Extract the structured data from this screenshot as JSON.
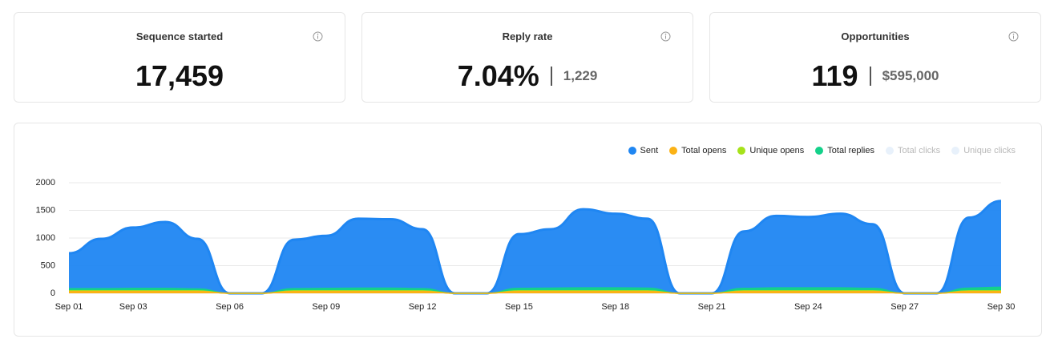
{
  "cards": [
    {
      "title": "Sequence started",
      "value": "17,459"
    },
    {
      "title": "Reply rate",
      "value": "7.04%",
      "secondary": "1,229"
    },
    {
      "title": "Opportunities",
      "value": "119",
      "secondary": "$595,000"
    }
  ],
  "chart_data": {
    "type": "area",
    "categories": [
      "Sep 01",
      null,
      "Sep 03",
      null,
      null,
      "Sep 06",
      null,
      null,
      "Sep 09",
      null,
      null,
      "Sep 12",
      null,
      null,
      "Sep 15",
      null,
      null,
      "Sep 18",
      null,
      null,
      "Sep 21",
      null,
      null,
      "Sep 24",
      null,
      null,
      "Sep 27",
      null,
      null,
      "Sep 30"
    ],
    "series": [
      {
        "name": "Sent",
        "color": "#1f86f2",
        "values": [
          725,
          985,
          1190,
          1290,
          985,
          0,
          0,
          970,
          1040,
          1350,
          1340,
          1160,
          0,
          0,
          1070,
          1160,
          1520,
          1440,
          1350,
          0,
          0,
          1120,
          1400,
          1380,
          1440,
          1250,
          0,
          0,
          1370,
          1670
        ]
      },
      {
        "name": "Total opens",
        "color": "#fbb215",
        "values": [
          35,
          35,
          35,
          35,
          35,
          0,
          0,
          35,
          35,
          35,
          35,
          35,
          0,
          0,
          35,
          35,
          35,
          35,
          35,
          0,
          0,
          35,
          35,
          35,
          35,
          35,
          0,
          0,
          35,
          35
        ]
      },
      {
        "name": "Unique opens",
        "color": "#a6e21a",
        "values": [
          45,
          45,
          45,
          45,
          45,
          0,
          0,
          45,
          45,
          45,
          45,
          45,
          0,
          0,
          45,
          45,
          45,
          45,
          45,
          0,
          0,
          45,
          45,
          45,
          45,
          45,
          0,
          0,
          45,
          45
        ]
      },
      {
        "name": "Total replies",
        "color": "#14d18a",
        "values": [
          85,
          85,
          90,
          90,
          80,
          0,
          0,
          85,
          90,
          95,
          95,
          85,
          0,
          0,
          90,
          95,
          100,
          100,
          95,
          0,
          0,
          90,
          100,
          100,
          100,
          90,
          0,
          0,
          95,
          110
        ]
      },
      {
        "name": "Total clicks",
        "color": "#e8f1fb",
        "hidden": true
      },
      {
        "name": "Unique clicks",
        "color": "#e8f1fb",
        "hidden": true
      }
    ],
    "ylim": [
      0,
      2000
    ],
    "yticks": [
      0,
      500,
      1000,
      1500,
      2000
    ],
    "grid": true,
    "legend": "top-right"
  }
}
